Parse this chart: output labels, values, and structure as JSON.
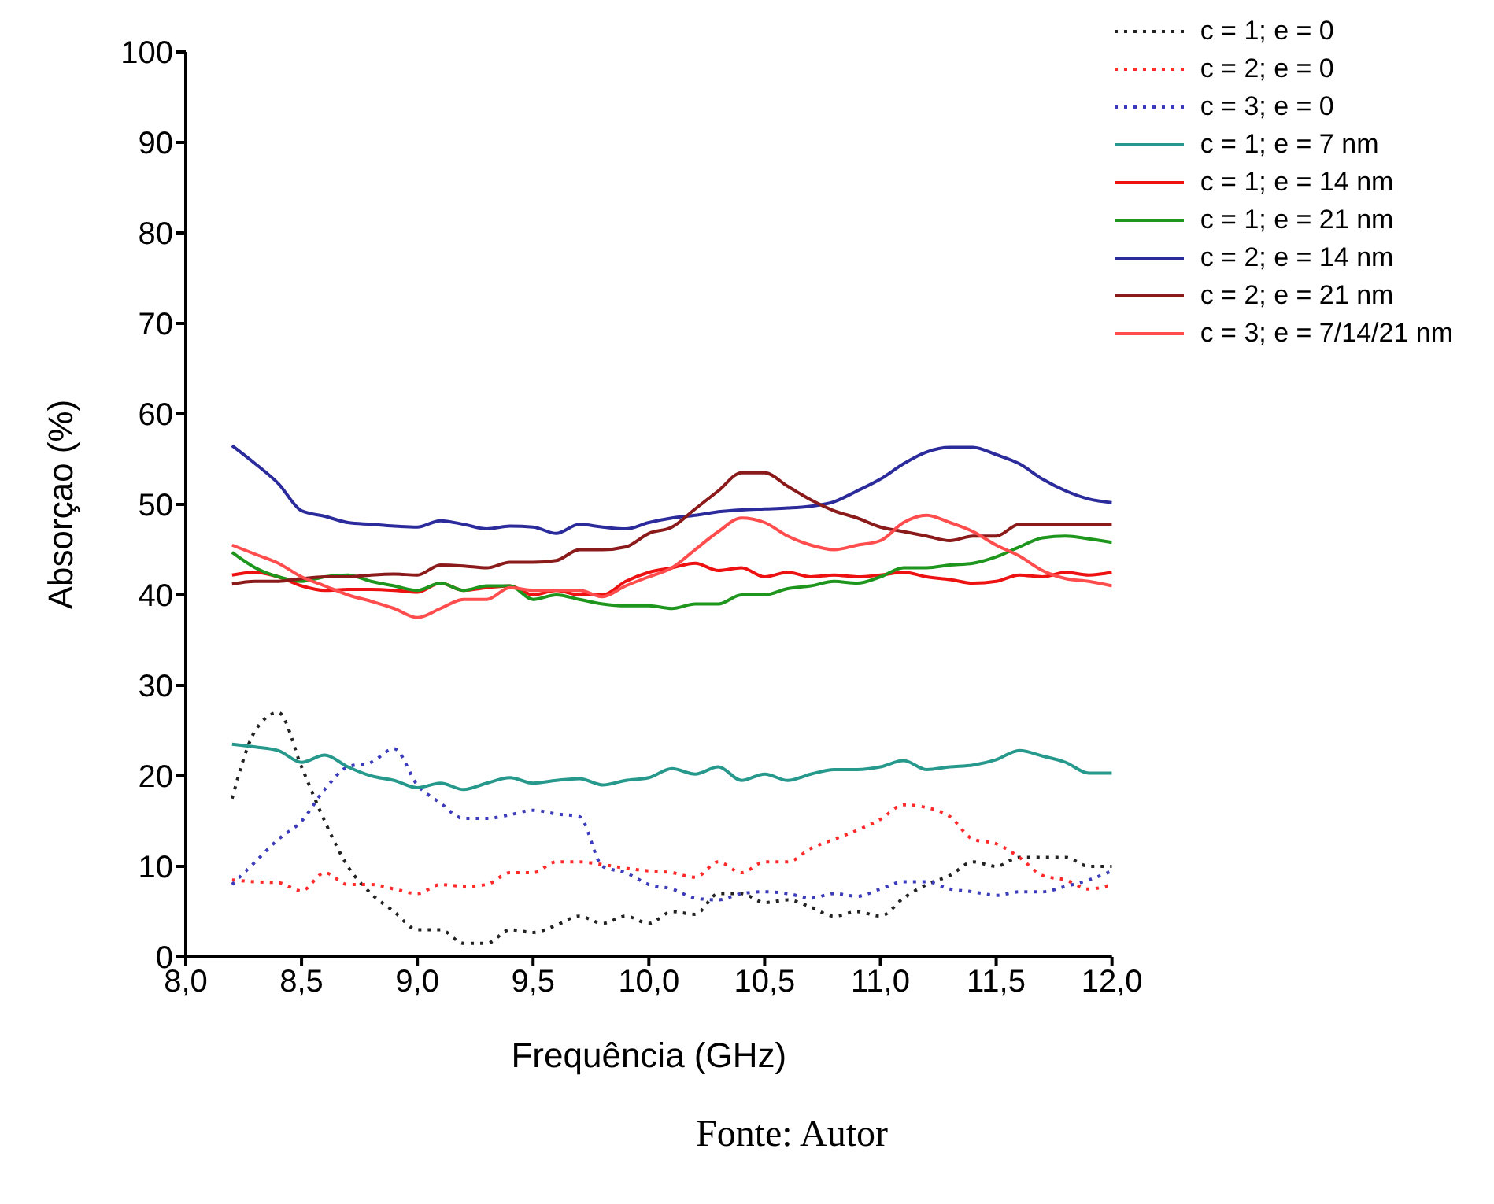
{
  "chart_data": {
    "type": "line",
    "xlabel": "Frequência (GHz)",
    "ylabel": "Absorçao (%)",
    "annotations": [
      "Fonte: Autor"
    ],
    "x": [
      8.2,
      8.3,
      8.4,
      8.5,
      8.6,
      8.7,
      8.8,
      8.9,
      9.0,
      9.1,
      9.2,
      9.3,
      9.4,
      9.5,
      9.6,
      9.7,
      9.8,
      9.9,
      10.0,
      10.1,
      10.2,
      10.3,
      10.4,
      10.5,
      10.6,
      10.7,
      10.8,
      10.9,
      11.0,
      11.1,
      11.2,
      11.3,
      11.4,
      11.5,
      11.6,
      11.7,
      11.8,
      11.9,
      12.0
    ],
    "xlim": [
      8,
      12
    ],
    "xticks": [
      {
        "value": 8,
        "label": "8,0"
      },
      {
        "value": 8.5,
        "label": "8,5"
      },
      {
        "value": 9,
        "label": "9,0"
      },
      {
        "value": 9.5,
        "label": "9,5"
      },
      {
        "value": 10,
        "label": "10,0"
      },
      {
        "value": 10.5,
        "label": "10,5"
      },
      {
        "value": 11,
        "label": "11,0"
      },
      {
        "value": 11.5,
        "label": "11,5"
      },
      {
        "value": 12,
        "label": "12,0"
      }
    ],
    "ylim": [
      0,
      100
    ],
    "yticks": [
      0,
      10,
      20,
      30,
      40,
      50,
      60,
      70,
      80,
      90,
      100
    ],
    "grid": false,
    "legend": "top right",
    "marker": "none",
    "series": [
      {
        "name": "c = 1; e = 0",
        "color": "#222222",
        "line_style": "dotted",
        "values": [
          17.5,
          25,
          27,
          21,
          15,
          10,
          7,
          5,
          3,
          3,
          1.5,
          1.5,
          3,
          2.7,
          3.5,
          4.5,
          3.7,
          4.5,
          3.7,
          5,
          4.7,
          7,
          7,
          6,
          6.3,
          5.5,
          4.5,
          5,
          4.5,
          6.5,
          8,
          9,
          10.5,
          10,
          11,
          11,
          11,
          10,
          10
        ]
      },
      {
        "name": "c = 2; e = 0",
        "color": "#ff2a2a",
        "line_style": "dotted",
        "values": [
          8.5,
          8.3,
          8.2,
          7.3,
          9.3,
          8,
          8,
          7.5,
          7,
          8,
          7.8,
          8,
          9.3,
          9.3,
          10.5,
          10.5,
          10.2,
          9.8,
          9.5,
          9.3,
          8.8,
          10.5,
          9.3,
          10.5,
          10.5,
          12,
          13,
          14,
          15.2,
          16.8,
          16.5,
          15.5,
          13,
          12.5,
          11,
          9,
          8.5,
          7.5,
          8
        ]
      },
      {
        "name": "c = 3; e = 0",
        "color": "#3b3bbb",
        "line_style": "dotted",
        "values": [
          8,
          10.5,
          13,
          15,
          18.5,
          21,
          21.5,
          23,
          19,
          17,
          15.3,
          15.3,
          15.7,
          16.2,
          15.8,
          15.5,
          10,
          9.3,
          8,
          7.5,
          6.5,
          6.3,
          7,
          7.2,
          7,
          6.5,
          7,
          6.7,
          7.5,
          8.3,
          8.3,
          7.5,
          7.2,
          6.8,
          7.2,
          7.2,
          7.8,
          8.5,
          9.5
        ]
      },
      {
        "name": "c = 1; e = 7 nm",
        "color": "#26998c",
        "line_style": "solid",
        "values": [
          23.5,
          23.2,
          22.8,
          21.5,
          22.3,
          21,
          20,
          19.5,
          18.7,
          19.2,
          18.5,
          19.2,
          19.8,
          19.2,
          19.5,
          19.7,
          19,
          19.5,
          19.8,
          20.8,
          20.2,
          21,
          19.5,
          20.2,
          19.5,
          20.2,
          20.7,
          20.7,
          21,
          21.7,
          20.7,
          21,
          21.2,
          21.8,
          22.8,
          22.2,
          21.5,
          20.3,
          20.3
        ]
      },
      {
        "name": "c = 1; e = 14 nm",
        "color": "#ee1111",
        "line_style": "solid",
        "values": [
          42.2,
          42.5,
          42,
          41,
          40.5,
          40.6,
          40.6,
          40.5,
          40.3,
          41.3,
          40.5,
          40.8,
          41,
          40,
          40.5,
          40,
          40,
          41.5,
          42.5,
          43,
          43.5,
          42.7,
          43,
          42,
          42.5,
          42,
          42.2,
          42,
          42.2,
          42.5,
          42,
          41.7,
          41.3,
          41.5,
          42.2,
          42,
          42.5,
          42.2,
          42.5
        ]
      },
      {
        "name": "c = 1; e = 21 nm",
        "color": "#1e961e",
        "line_style": "solid",
        "values": [
          44.7,
          43,
          42,
          41.5,
          42,
          42.2,
          41.5,
          41,
          40.5,
          41.3,
          40.5,
          41,
          41,
          39.5,
          40,
          39.5,
          39,
          38.8,
          38.8,
          38.5,
          39,
          39,
          40,
          40,
          40.7,
          41,
          41.5,
          41.3,
          42,
          43,
          43,
          43.3,
          43.5,
          44.2,
          45.3,
          46.3,
          46.5,
          46.2,
          45.8
        ]
      },
      {
        "name": "c = 2; e = 14 nm",
        "color": "#2b2b9c",
        "line_style": "solid",
        "values": [
          56.5,
          54.5,
          52.3,
          49.3,
          48.7,
          48,
          47.8,
          47.6,
          47.5,
          48.2,
          47.8,
          47.3,
          47.6,
          47.5,
          46.8,
          47.8,
          47.5,
          47.3,
          48,
          48.5,
          48.8,
          49.2,
          49.4,
          49.5,
          49.6,
          49.8,
          50.3,
          51.5,
          52.8,
          54.5,
          55.8,
          56.3,
          56.3,
          55.5,
          54.5,
          52.8,
          51.5,
          50.6,
          50.2
        ]
      },
      {
        "name": "c = 2; e = 21 nm",
        "color": "#8b1a1a",
        "line_style": "solid",
        "values": [
          41.2,
          41.5,
          41.5,
          41.8,
          42,
          42,
          42.2,
          42.3,
          42.2,
          43.3,
          43.2,
          43,
          43.6,
          43.6,
          43.8,
          45,
          45,
          45.3,
          46.8,
          47.5,
          49.5,
          51.5,
          53.5,
          53.5,
          52,
          50.5,
          49.3,
          48.5,
          47.5,
          47,
          46.5,
          46,
          46.5,
          46.5,
          47.8,
          47.8,
          47.8,
          47.8,
          47.8
        ]
      },
      {
        "name": "c = 3; e = 7/14/21 nm",
        "color": "#ff4d4d",
        "line_style": "solid",
        "values": [
          45.5,
          44.5,
          43.5,
          42,
          41,
          40,
          39.3,
          38.5,
          37.5,
          38.5,
          39.5,
          39.5,
          40.8,
          40.5,
          40.5,
          40.5,
          39.8,
          41,
          42,
          43,
          45,
          47,
          48.5,
          48,
          46.5,
          45.5,
          45,
          45.5,
          46,
          48,
          48.8,
          48,
          47,
          45.5,
          44.3,
          42.7,
          41.8,
          41.5,
          41
        ]
      }
    ]
  }
}
